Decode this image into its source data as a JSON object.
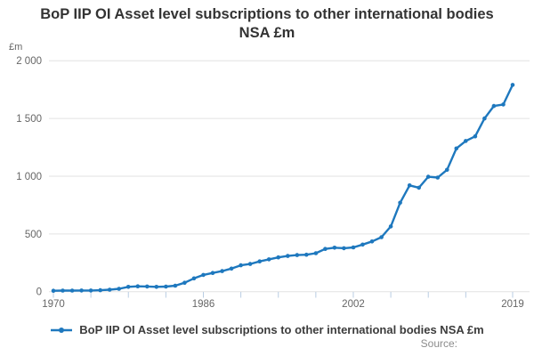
{
  "title": "BoP IIP OI Asset level subscriptions to other international bodies NSA £m",
  "y_axis": {
    "unit": "£m",
    "tick_labels": [
      "0",
      "500",
      "1 000",
      "1 500",
      "2 000"
    ],
    "tick_values": [
      0,
      500,
      1000,
      1500,
      2000
    ]
  },
  "x_axis": {
    "labeled_ticks": [
      1970,
      1986,
      2002,
      2019
    ],
    "minor_ticks": [
      1970,
      1974,
      1978,
      1982,
      1986,
      1990,
      1994,
      1998,
      2002,
      2006,
      2010,
      2014,
      2019
    ]
  },
  "legend": {
    "label": "BoP IIP OI Asset level subscriptions to other international bodies NSA £m"
  },
  "footer": {
    "source_label": "Source:"
  },
  "colors": {
    "line": "#1e78be",
    "grid": "#e2e2e2",
    "axis_text": "#666666",
    "tick_mark": "#b9cde3",
    "title_text": "#333333",
    "legend_text": "#3c3c3c",
    "source_text": "#8c8c8c"
  },
  "chart_data": {
    "type": "line",
    "title": "BoP IIP OI Asset level subscriptions to other international bodies NSA £m",
    "xlabel": "",
    "ylabel": "£m",
    "ylim": [
      0,
      2000
    ],
    "xlim": [
      1970,
      2019
    ],
    "grid": "horizontal",
    "legend_position": "bottom",
    "x": [
      1970,
      1971,
      1972,
      1973,
      1974,
      1975,
      1976,
      1977,
      1978,
      1979,
      1980,
      1981,
      1982,
      1983,
      1984,
      1985,
      1986,
      1987,
      1988,
      1989,
      1990,
      1991,
      1992,
      1993,
      1994,
      1995,
      1996,
      1997,
      1998,
      1999,
      2000,
      2001,
      2002,
      2003,
      2004,
      2005,
      2006,
      2007,
      2008,
      2009,
      2010,
      2011,
      2012,
      2013,
      2014,
      2015,
      2016,
      2017,
      2018,
      2019
    ],
    "series": [
      {
        "name": "BoP IIP OI Asset level subscriptions to other international bodies NSA £m",
        "values": [
          8,
          9,
          9,
          10,
          10,
          12,
          17,
          25,
          42,
          46,
          45,
          42,
          44,
          52,
          77,
          115,
          145,
          162,
          178,
          200,
          228,
          240,
          262,
          280,
          297,
          309,
          317,
          320,
          333,
          370,
          381,
          376,
          383,
          408,
          435,
          472,
          565,
          770,
          920,
          900,
          995,
          988,
          1055,
          1240,
          1305,
          1345,
          1500,
          1608,
          1621,
          1790
        ]
      }
    ]
  }
}
